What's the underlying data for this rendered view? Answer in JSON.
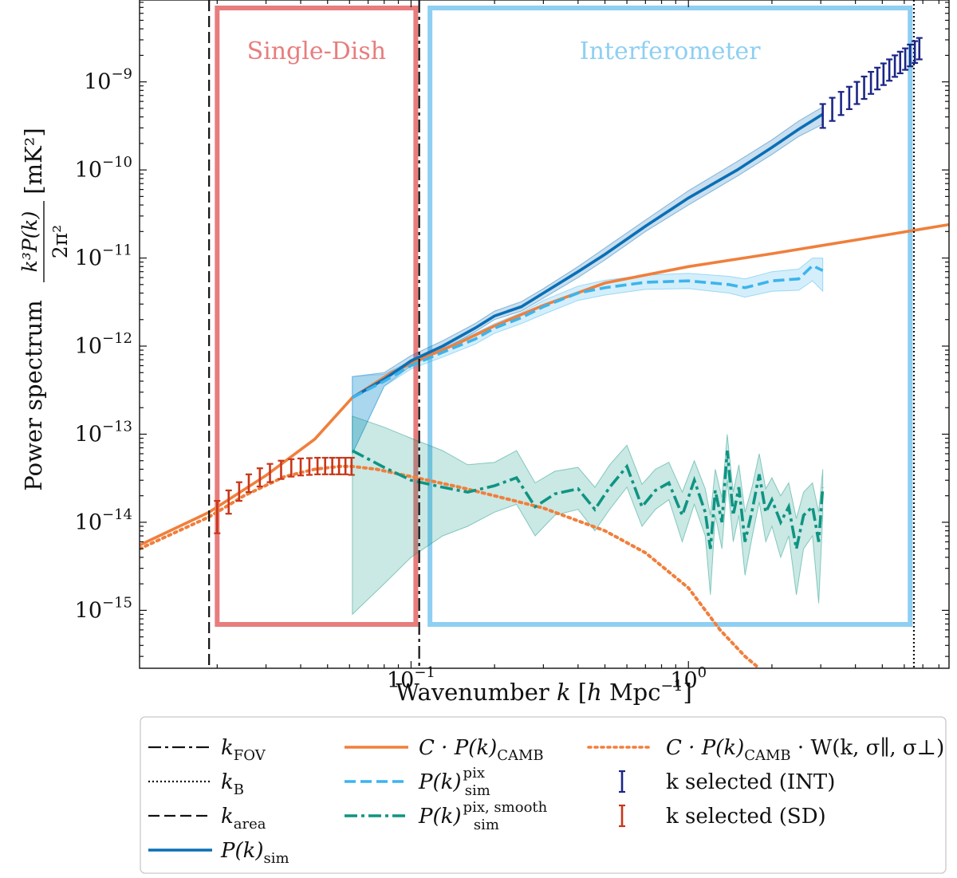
{
  "chart_data": {
    "type": "line",
    "title": "",
    "xlabel": "Wavenumber k [h Mpc⁻¹]",
    "ylabel": "Power spectrum k³P(k)/2π² [mK²]",
    "xscale": "log",
    "yscale": "log",
    "xlim": [
      0.0105,
      8.7
    ],
    "ylim": [
      2.2e-16,
      8.5e-09
    ],
    "xticks": [
      {
        "value": 0.1,
        "label_base": "10",
        "label_exp": "−1"
      },
      {
        "value": 1.0,
        "label_base": "10",
        "label_exp": "0"
      }
    ],
    "yticks": [
      {
        "value": 1e-15,
        "label_base": "10",
        "label_exp": "−15"
      },
      {
        "value": 1e-14,
        "label_base": "10",
        "label_exp": "−14"
      },
      {
        "value": 1e-13,
        "label_base": "10",
        "label_exp": "−13"
      },
      {
        "value": 1e-12,
        "label_base": "10",
        "label_exp": "−12"
      },
      {
        "value": 1e-11,
        "label_base": "10",
        "label_exp": "−11"
      },
      {
        "value": 1e-10,
        "label_base": "10",
        "label_exp": "−10"
      },
      {
        "value": 1e-09,
        "label_base": "10",
        "label_exp": "−9"
      }
    ],
    "regions": [
      {
        "name": "Single-Dish",
        "label": "Single-Dish",
        "x_range": [
          0.02,
          0.104
        ],
        "color": "#e87d7d"
      },
      {
        "name": "Interferometer",
        "label": "Interferometer",
        "x_range": [
          0.117,
          6.3
        ],
        "color": "#8ecff2"
      }
    ],
    "vlines": [
      {
        "name": "k_FOV",
        "x": 0.107,
        "style": "dashdot"
      },
      {
        "name": "k_B",
        "x": 6.5,
        "style": "dotted"
      },
      {
        "name": "k_area",
        "x": 0.0187,
        "style": "dashed"
      }
    ],
    "series": [
      {
        "name": "C·P(k)_CAMB",
        "color": "#f07f3c",
        "style": "solid",
        "x": [
          0.0105,
          0.0187,
          0.03,
          0.045,
          0.0614,
          0.085,
          0.107,
          0.15,
          0.2,
          0.3,
          0.5,
          1.0,
          2.0,
          4.0,
          8.7
        ],
        "y": [
          5.5e-15,
          1.3e-14,
          3.4e-14,
          8.8e-14,
          2.6e-13,
          5e-13,
          7e-13,
          1.1e-12,
          1.7e-12,
          2.9e-12,
          5.2e-12,
          8e-12,
          1.12e-11,
          1.6e-11,
          2.4e-11
        ]
      },
      {
        "name": "C·P(k)_CAMB·W(k,σ∥,σ⊥)",
        "color": "#f07f3c",
        "style": "dotted",
        "x": [
          0.0105,
          0.0187,
          0.025,
          0.035,
          0.045,
          0.055,
          0.0614,
          0.075,
          0.1,
          0.15,
          0.2,
          0.3,
          0.5,
          0.7,
          1.0,
          1.3,
          1.6,
          1.8
        ],
        "y": [
          5e-15,
          1.15e-14,
          2e-14,
          3.3e-14,
          4e-14,
          4.3e-14,
          4.3e-14,
          4e-14,
          3.3e-14,
          2.5e-14,
          2e-14,
          1.45e-14,
          8e-15,
          4.5e-15,
          1.8e-15,
          6e-16,
          3e-16,
          2.2e-16
        ]
      },
      {
        "name": "P(k)_sim",
        "color": "#0a6fb5",
        "style": "solid",
        "x": [
          0.0614,
          0.08,
          0.1,
          0.13,
          0.17,
          0.2,
          0.25,
          0.3,
          0.4,
          0.5,
          0.7,
          1.0,
          1.5,
          2.0,
          2.5,
          3.05
        ],
        "y": [
          2.6e-13,
          4.2e-13,
          6.8e-13,
          1e-12,
          1.6e-12,
          2.2e-12,
          2.8e-12,
          4e-12,
          7e-12,
          1.1e-11,
          2.3e-11,
          4.8e-11,
          1e-10,
          1.8e-10,
          2.9e-10,
          4.3e-10
        ],
        "band_lower": [
          6e-14,
          3.5e-13,
          6e-13,
          9e-13,
          1.45e-12,
          2e-12,
          2.5e-12,
          3.5e-12,
          6e-12,
          9.5e-12,
          2e-11,
          4e-11,
          8.5e-11,
          1.5e-10,
          2.4e-10,
          3.3e-10
        ],
        "band_upper": [
          4.5e-13,
          5e-13,
          7.8e-13,
          1.15e-12,
          1.8e-12,
          2.5e-12,
          3.2e-12,
          4.5e-12,
          8e-12,
          1.3e-11,
          2.7e-11,
          5.8e-11,
          1.25e-10,
          2.2e-10,
          3.6e-10,
          5.2e-10
        ]
      },
      {
        "name": "P(k)_sim^pix",
        "color": "#3db4ec",
        "style": "dashed",
        "x": [
          0.0614,
          0.08,
          0.1,
          0.13,
          0.17,
          0.2,
          0.25,
          0.3,
          0.4,
          0.5,
          0.7,
          1.0,
          1.4,
          1.6,
          2.0,
          2.5,
          2.8,
          3.05
        ],
        "y": [
          2.6e-13,
          4e-13,
          6e-13,
          8.5e-13,
          1.2e-12,
          1.6e-12,
          2.1e-12,
          2.8e-12,
          4e-12,
          4.6e-12,
          5.3e-12,
          5.5e-12,
          5e-12,
          4.6e-12,
          5.5e-12,
          5.8e-12,
          8.2e-12,
          7.2e-12
        ],
        "band_lower": [
          6e-14,
          3.5e-13,
          5.5e-13,
          7.5e-13,
          1.05e-12,
          1.4e-12,
          1.8e-12,
          2.3e-12,
          3.3e-12,
          3.8e-12,
          4.4e-12,
          4.5e-12,
          4e-12,
          3.6e-12,
          4.2e-12,
          4.3e-12,
          5.5e-12,
          4.2e-12
        ],
        "band_upper": [
          4.5e-13,
          4.8e-13,
          6.8e-13,
          9.5e-13,
          1.4e-12,
          1.8e-12,
          2.4e-12,
          3.3e-12,
          4.8e-12,
          5.6e-12,
          6.4e-12,
          6.7e-12,
          6.2e-12,
          5.8e-12,
          7e-12,
          7.5e-12,
          1e-11,
          1e-11
        ]
      },
      {
        "name": "P(k)_sim^pix,smooth",
        "color": "#0f9483",
        "style": "dashdot",
        "x": [
          0.0614,
          0.08,
          0.1,
          0.13,
          0.16,
          0.2,
          0.24,
          0.28,
          0.33,
          0.4,
          0.46,
          0.52,
          0.6,
          0.68,
          0.76,
          0.85,
          0.95,
          1.05,
          1.15,
          1.2,
          1.25,
          1.32,
          1.38,
          1.45,
          1.52,
          1.6,
          1.7,
          1.8,
          1.9,
          2.0,
          2.15,
          2.3,
          2.45,
          2.6,
          2.8,
          2.95,
          3.05
        ],
        "y": [
          6.5e-14,
          4.2e-14,
          3e-14,
          2.5e-14,
          2.2e-14,
          2.6e-14,
          3.2e-14,
          1.5e-14,
          2.1e-14,
          2.4e-14,
          1.4e-14,
          2.5e-14,
          4.3e-14,
          1.5e-14,
          2.3e-14,
          2.8e-14,
          1.2e-14,
          3e-14,
          1.3e-14,
          5e-15,
          2.3e-14,
          1e-14,
          6.5e-14,
          1.2e-14,
          2.5e-14,
          6e-15,
          1.4e-14,
          3.5e-14,
          1.3e-14,
          1.8e-14,
          1e-14,
          1.5e-14,
          5e-15,
          1.2e-14,
          1.5e-14,
          6e-15,
          2.5e-14
        ],
        "band_lower": [
          9e-16,
          2e-15,
          4e-15,
          7e-15,
          9e-15,
          1.3e-14,
          1.6e-14,
          7e-15,
          1.2e-14,
          1.4e-14,
          8e-15,
          1.4e-14,
          2.5e-14,
          9e-15,
          1.4e-14,
          1.8e-14,
          6e-15,
          1.6e-14,
          7e-15,
          1.5e-15,
          1.2e-14,
          5e-15,
          3e-14,
          6e-15,
          1.2e-14,
          2.5e-15,
          7e-15,
          1.7e-14,
          6e-15,
          9e-15,
          4e-15,
          7e-15,
          1.5e-15,
          5e-15,
          7e-15,
          1.2e-15,
          1.2e-14
        ],
        "band_upper": [
          1.6e-13,
          1.2e-13,
          9e-14,
          6.5e-14,
          4.5e-14,
          4.8e-14,
          6.5e-14,
          2.8e-14,
          3.8e-14,
          4.2e-14,
          2.5e-14,
          4.5e-14,
          7.5e-14,
          2.7e-14,
          4e-14,
          4.8e-14,
          2.2e-14,
          5e-14,
          2.4e-14,
          1.2e-14,
          4e-14,
          1.9e-14,
          1e-13,
          2.2e-14,
          4.5e-14,
          1.3e-14,
          2.6e-14,
          6e-14,
          2.4e-14,
          3.2e-14,
          2e-14,
          2.8e-14,
          1.1e-14,
          2.2e-14,
          2.8e-14,
          1.3e-14,
          4e-14
        ]
      }
    ],
    "errorbars": [
      {
        "name": "k selected (SD)",
        "color": "#c8361a",
        "x": [
          0.02,
          0.022,
          0.024,
          0.026,
          0.0285,
          0.031,
          0.034,
          0.037,
          0.04,
          0.043,
          0.046,
          0.049,
          0.052,
          0.055,
          0.058,
          0.061
        ],
        "y": [
          1.25e-14,
          1.75e-14,
          2.3e-14,
          2.85e-14,
          3.3e-14,
          3.7e-14,
          4e-14,
          4.2e-14,
          4.35e-14,
          4.4e-14,
          4.45e-14,
          4.5e-14,
          4.5e-14,
          4.5e-14,
          4.5e-14,
          4.45e-14
        ],
        "err_lo": [
          7.5e-15,
          1.25e-14,
          1.75e-14,
          2.2e-14,
          2.55e-14,
          2.85e-14,
          3.1e-14,
          3.3e-14,
          3.4e-14,
          3.45e-14,
          3.5e-14,
          3.5e-14,
          3.5e-14,
          3.5e-14,
          3.5e-14,
          3.45e-14
        ],
        "err_hi": [
          1.75e-14,
          2.3e-14,
          2.85e-14,
          3.5e-14,
          4.1e-14,
          4.6e-14,
          5e-14,
          5.2e-14,
          5.3e-14,
          5.35e-14,
          5.4e-14,
          5.4e-14,
          5.4e-14,
          5.4e-14,
          5.4e-14,
          5.4e-14
        ]
      },
      {
        "name": "k selected (INT)",
        "color": "#1b2686",
        "x": [
          3.05,
          3.3,
          3.55,
          3.8,
          4.05,
          4.3,
          4.55,
          4.8,
          5.05,
          5.3,
          5.55,
          5.8,
          6.05,
          6.3,
          6.55,
          6.8
        ],
        "y": [
          4.2e-10,
          5e-10,
          5.8e-10,
          6.7e-10,
          7.7e-10,
          8.8e-10,
          1e-09,
          1.12e-09,
          1.25e-09,
          1.4e-09,
          1.55e-09,
          1.7e-09,
          1.85e-09,
          2e-09,
          2.2e-09,
          2.4e-09
        ],
        "err_lo": [
          3e-10,
          3.6e-10,
          4.2e-10,
          4.9e-10,
          5.6e-10,
          6.4e-10,
          7.3e-10,
          8.2e-10,
          9.2e-10,
          1.03e-09,
          1.14e-09,
          1.25e-09,
          1.37e-09,
          1.5e-09,
          1.64e-09,
          1.8e-09
        ],
        "err_hi": [
          5.6e-10,
          6.6e-10,
          7.7e-10,
          8.8e-10,
          1e-09,
          1.15e-09,
          1.3e-09,
          1.45e-09,
          1.62e-09,
          1.8e-09,
          2e-09,
          2.2e-09,
          2.4e-09,
          2.65e-09,
          2.9e-09,
          3.15e-09
        ]
      }
    ],
    "legend": {
      "position": "bottom",
      "entries": [
        {
          "id": "kfov",
          "label_main": "k",
          "label_sub": "FOV",
          "label_sup": "",
          "label_suffix": "",
          "style": "dashdot",
          "color": "#111111"
        },
        {
          "id": "kb",
          "label_main": "k",
          "label_sub": "B",
          "label_sup": "",
          "label_suffix": "",
          "style": "dotted",
          "color": "#111111"
        },
        {
          "id": "karea",
          "label_main": "k",
          "label_sub": "area",
          "label_sup": "",
          "label_suffix": "",
          "style": "dashed",
          "color": "#111111"
        },
        {
          "id": "psim",
          "label_main": "P(k)",
          "label_sub": "sim",
          "label_sup": "",
          "label_suffix": "",
          "style": "solid",
          "color": "#0a6fb5"
        },
        {
          "id": "camb",
          "label_main": "C · P(k)",
          "label_sub": "CAMB",
          "label_sup": "",
          "label_suffix": "",
          "style": "solid",
          "color": "#f07f3c"
        },
        {
          "id": "pix",
          "label_main": "P(k)",
          "label_sub": "sim",
          "label_sup": "pix",
          "label_suffix": "",
          "style": "dashed",
          "color": "#3db4ec"
        },
        {
          "id": "pixsmooth",
          "label_main": "P(k)",
          "label_sub": "sim",
          "label_sup": "pix, smooth",
          "label_suffix": "",
          "style": "dashdot",
          "color": "#0f9483"
        },
        {
          "id": "cambw",
          "label_main": "C · P(k)",
          "label_sub": "CAMB",
          "label_sup": "",
          "label_suffix": " · W(k, σ∥, σ⊥)",
          "style": "dotted",
          "color": "#f07f3c"
        },
        {
          "id": "selint",
          "label_main": "k selected (INT)",
          "label_sub": "",
          "label_sup": "",
          "label_suffix": "",
          "style": "errorbar",
          "color": "#1b2686"
        },
        {
          "id": "selsd",
          "label_main": "k selected (SD)",
          "label_sub": "",
          "label_sup": "",
          "label_suffix": "",
          "style": "errorbar",
          "color": "#c8361a"
        }
      ]
    },
    "axis_label_parts": {
      "x_pre": "Wavenumber ",
      "x_k": "k",
      "x_unit_open": " [",
      "x_h": "h",
      "x_unit": " Mpc",
      "x_exp": "−1",
      "x_close": "]",
      "y_pre": "Power spectrum",
      "y_num": "k³P(k)",
      "y_den": "2π²",
      "y_unit": "[mK²]"
    }
  }
}
